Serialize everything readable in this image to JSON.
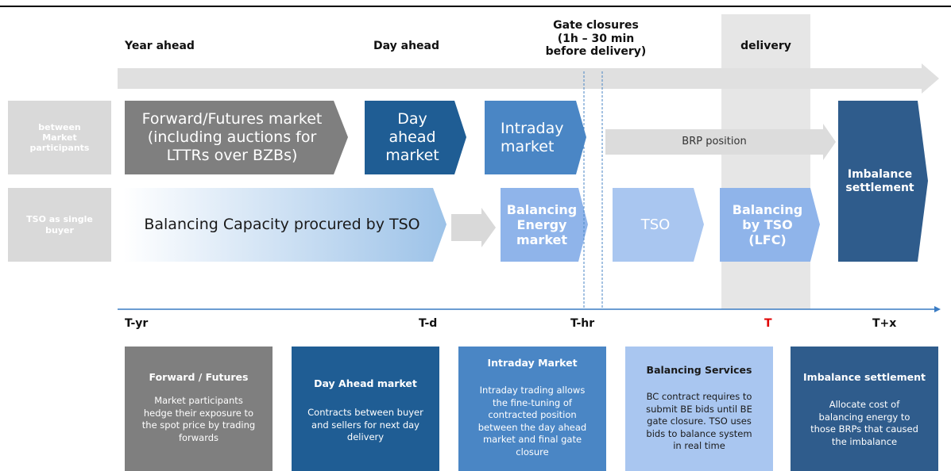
{
  "header": {
    "year_ahead": "Year ahead",
    "day_ahead": "Day ahead",
    "gate_closures": [
      "Gate closures",
      "(1h – 30 min",
      "before delivery)"
    ],
    "delivery": "delivery"
  },
  "row_labels": [
    [
      "between",
      "Market",
      "participants"
    ],
    [
      "TSO as single",
      "buyer"
    ]
  ],
  "market_shapes": {
    "forward_futures": [
      "Forward/Futures market",
      "(including auctions for",
      "LTTRs over BZBs)"
    ],
    "day_ahead": [
      "Day",
      "ahead",
      "market"
    ],
    "intraday": [
      "Intraday",
      "market"
    ],
    "brp_position": "BRP position",
    "imbalance_settlement": [
      "Imbalance",
      "settlement"
    ],
    "balancing_capacity": "Balancing Capacity procured by TSO",
    "balancing_energy": [
      "Balancing",
      "Energy",
      "market"
    ],
    "tso": "TSO",
    "balancing_by_tso": [
      "Balancing",
      "by TSO",
      "(LFC)"
    ]
  },
  "timeline": [
    "T-yr",
    "T-d",
    "T-hr",
    "T",
    "T+x"
  ],
  "cards": [
    {
      "title": "Forward / Futures",
      "body": [
        "Market participants",
        "hedge their exposure to",
        "the spot price by trading",
        "forwards"
      ]
    },
    {
      "title": "Day Ahead market",
      "body": [
        "Contracts between buyer",
        "and sellers for next day",
        "delivery"
      ]
    },
    {
      "title": "Intraday Market",
      "body": [
        "Intraday trading allows",
        "the fine-tuning of",
        "contracted position",
        "between the day ahead",
        "market and final gate",
        "closure"
      ]
    },
    {
      "title": "Balancing Services",
      "body": [
        "BC contract requires to",
        "submit BE bids until BE",
        "gate closure. TSO uses",
        "bids to balance system",
        "in real time"
      ]
    },
    {
      "title": "Imbalance settlement",
      "body": [
        "Allocate cost of",
        "balancing energy to",
        "those BRPs that caused",
        "the imbalance"
      ]
    }
  ]
}
